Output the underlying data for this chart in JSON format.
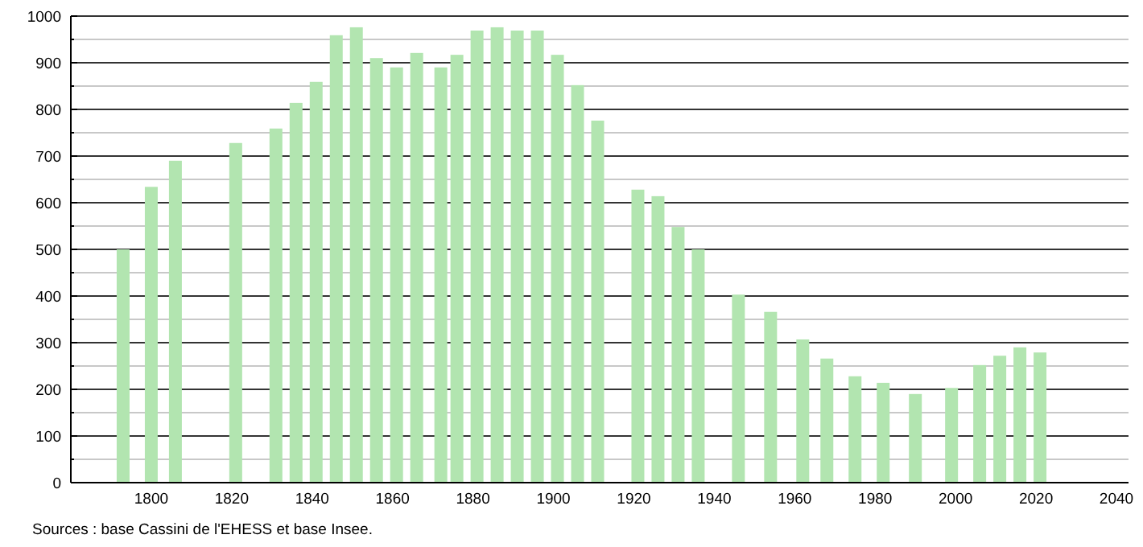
{
  "chart_data": {
    "type": "bar",
    "x": [
      1793,
      1800,
      1806,
      1821,
      1831,
      1836,
      1841,
      1846,
      1851,
      1856,
      1861,
      1866,
      1872,
      1876,
      1881,
      1886,
      1891,
      1896,
      1901,
      1906,
      1911,
      1921,
      1926,
      1931,
      1936,
      1946,
      1954,
      1962,
      1968,
      1975,
      1982,
      1990,
      1999,
      2006,
      2011,
      2016,
      2021
    ],
    "values": [
      500,
      634,
      690,
      728,
      759,
      814,
      859,
      959,
      976,
      910,
      890,
      921,
      890,
      917,
      969,
      976,
      969,
      969,
      917,
      852,
      776,
      628,
      614,
      548,
      500,
      403,
      366,
      307,
      266,
      228,
      214,
      190,
      203,
      252,
      272,
      290,
      279
    ],
    "color": "#b2e5b0",
    "xlim": [
      1780,
      2043
    ],
    "xticks": [
      1800,
      1820,
      1840,
      1860,
      1880,
      1900,
      1920,
      1940,
      1960,
      1980,
      2000,
      2020,
      2040
    ],
    "ylim": [
      0,
      1000
    ],
    "yticks": [
      0,
      {
        "value": 50,
        "label": null
      },
      100,
      {
        "value": 150,
        "label": null
      },
      200,
      {
        "value": 250,
        "label": null
      },
      300,
      {
        "value": 350,
        "label": null
      },
      400,
      {
        "value": 450,
        "label": null
      },
      500,
      {
        "value": 550,
        "label": null
      },
      600,
      {
        "value": 650,
        "label": null
      },
      700,
      {
        "value": 750,
        "label": null
      },
      800,
      {
        "value": 850,
        "label": null
      },
      900,
      {
        "value": 950,
        "label": null
      },
      1000
    ],
    "grid": "y",
    "annotations": [
      "Sources : base Cassini de l'EHESS et base Insee."
    ]
  }
}
